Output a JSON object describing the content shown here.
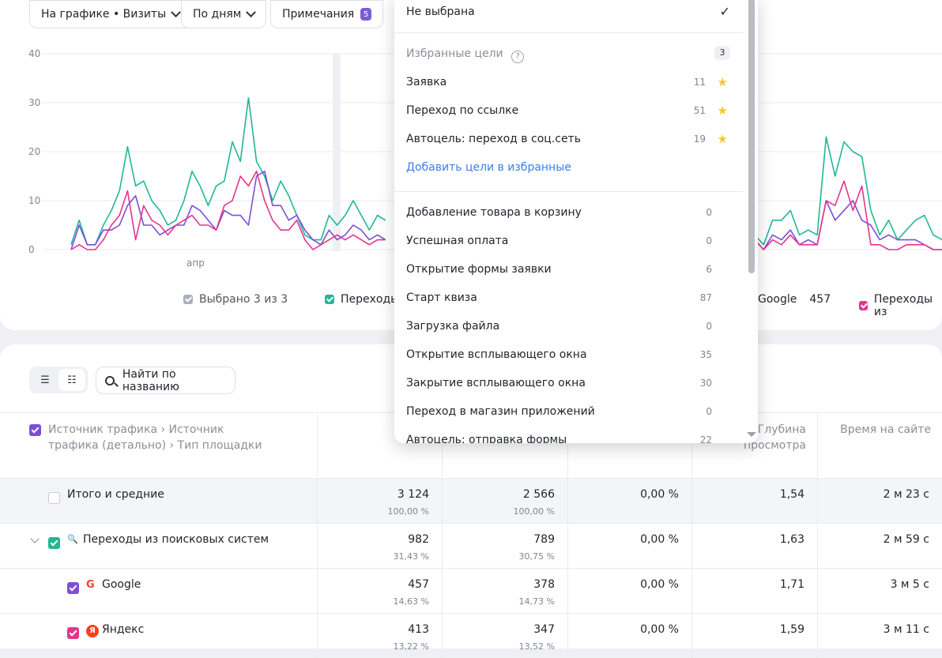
{
  "toolbar": {
    "chart_mode": "На графике • Визиты",
    "period": "По дням",
    "notes_label": "Примечания",
    "notes_count": "5"
  },
  "chart_data": {
    "type": "line",
    "y_ticks": [
      "40",
      "30",
      "20",
      "10",
      "0"
    ],
    "x_tick": "апр",
    "ylim": [
      0,
      40
    ],
    "grid": true,
    "colors": {
      "teal": "#1fb896",
      "purple": "#7b4fd6",
      "pink": "#e6348e"
    },
    "series": [
      {
        "values": [
          1,
          6,
          1,
          1,
          5,
          8,
          12,
          21,
          13,
          14,
          10,
          8,
          5,
          6,
          10,
          16,
          13,
          9,
          13,
          14,
          22,
          18,
          31,
          18,
          15,
          10,
          14,
          11,
          7,
          3,
          2,
          2,
          7,
          5,
          7,
          10,
          7,
          4,
          7,
          6
        ]
      },
      {
        "values": [
          0,
          5,
          1,
          1,
          4,
          4,
          5,
          9,
          11,
          5,
          5,
          3,
          4,
          5,
          5,
          9,
          8,
          6,
          4,
          8,
          7,
          7,
          5,
          15,
          16,
          9,
          9,
          6,
          7,
          4,
          2,
          1,
          4,
          2,
          3,
          5,
          4,
          2,
          3,
          2
        ]
      },
      {
        "values": [
          0,
          1,
          0,
          0,
          2,
          5,
          7,
          12,
          2,
          9,
          6,
          5,
          3,
          5,
          6,
          7,
          5,
          5,
          4,
          9,
          10,
          15,
          13,
          16,
          10,
          6,
          4,
          4,
          6,
          2,
          0,
          1,
          2,
          3,
          2,
          3,
          2,
          1,
          2,
          2
        ]
      }
    ],
    "right_series": [
      {
        "values": [
          3,
          1,
          6,
          6,
          8,
          3,
          4,
          3,
          23,
          15,
          22,
          20,
          19,
          8,
          3,
          6,
          2,
          4,
          6,
          7,
          3,
          2
        ]
      },
      {
        "values": [
          2,
          0,
          3,
          2,
          4,
          1,
          2,
          1,
          10,
          6,
          8,
          10,
          6,
          5,
          2,
          3,
          2,
          2,
          2,
          1,
          0,
          0
        ]
      },
      {
        "values": [
          2,
          0,
          2,
          1,
          3,
          1,
          1,
          1,
          10,
          9,
          14,
          8,
          13,
          1,
          1,
          0,
          0,
          1,
          1,
          1,
          0,
          0
        ]
      }
    ]
  },
  "legend": {
    "selected": "Выбрано 3 из 3",
    "item1": "Переходы",
    "item2": "Google",
    "item2_value": "457",
    "item3": "Переходы из"
  },
  "search": {
    "placeholder": "Найти по названию"
  },
  "table": {
    "dim_header": "Источник трафика › Источник трафика (детально) › Тип площадки",
    "col_partial": "В",
    "col_depth": "Глубина просмотра",
    "col_time": "Время на сайте",
    "rows": [
      {
        "label": "Итого и средние",
        "v1": "3 124",
        "p1": "100,00 %",
        "v2": "2 566",
        "p2": "100,00 %",
        "v3": "0,00 %",
        "v4": "1,54",
        "v5": "2 м 23 с"
      },
      {
        "label": "Переходы из поисковых систем",
        "v1": "982",
        "p1": "31,43 %",
        "v2": "789",
        "p2": "30,75 %",
        "v3": "0,00 %",
        "v4": "1,63",
        "v5": "2 м 59 с"
      },
      {
        "label": "Google",
        "v1": "457",
        "p1": "14,63 %",
        "v2": "378",
        "p2": "14,73 %",
        "v3": "0,00 %",
        "v4": "1,71",
        "v5": "3 м 5 с"
      },
      {
        "label": "Яндекс",
        "v1": "413",
        "p1": "13,22 %",
        "v2": "347",
        "p2": "13,52 %",
        "v3": "0,00 %",
        "v4": "1,59",
        "v5": "3 м 11 с"
      }
    ]
  },
  "dropdown": {
    "none_label": "Не выбрана",
    "fav_header": "Избранные цели",
    "fav_count": "3",
    "favorites": [
      {
        "label": "Заявка",
        "count": "11"
      },
      {
        "label": "Переход по ссылке",
        "count": "51"
      },
      {
        "label": "Автоцель: переход в соц.сеть",
        "count": "19"
      }
    ],
    "add_fav_link": "Добавить цели в избранные",
    "goals": [
      {
        "label": "Добавление товара в корзину",
        "count": "0"
      },
      {
        "label": "Успешная оплата",
        "count": "0"
      },
      {
        "label": "Открытие формы заявки",
        "count": "6"
      },
      {
        "label": "Старт квиза",
        "count": "87"
      },
      {
        "label": "Загрузка файла",
        "count": "0"
      },
      {
        "label": "Открытие всплывающего окна",
        "count": "35"
      },
      {
        "label": "Закрытие всплывающего окна",
        "count": "30"
      },
      {
        "label": "Переход в магазин приложений",
        "count": "0"
      },
      {
        "label": "Автоцель: отправка формы",
        "count": "22"
      }
    ]
  },
  "icons": {
    "check": "✓",
    "star": "★",
    "help": "?",
    "yandex": "Я",
    "google": "G"
  }
}
